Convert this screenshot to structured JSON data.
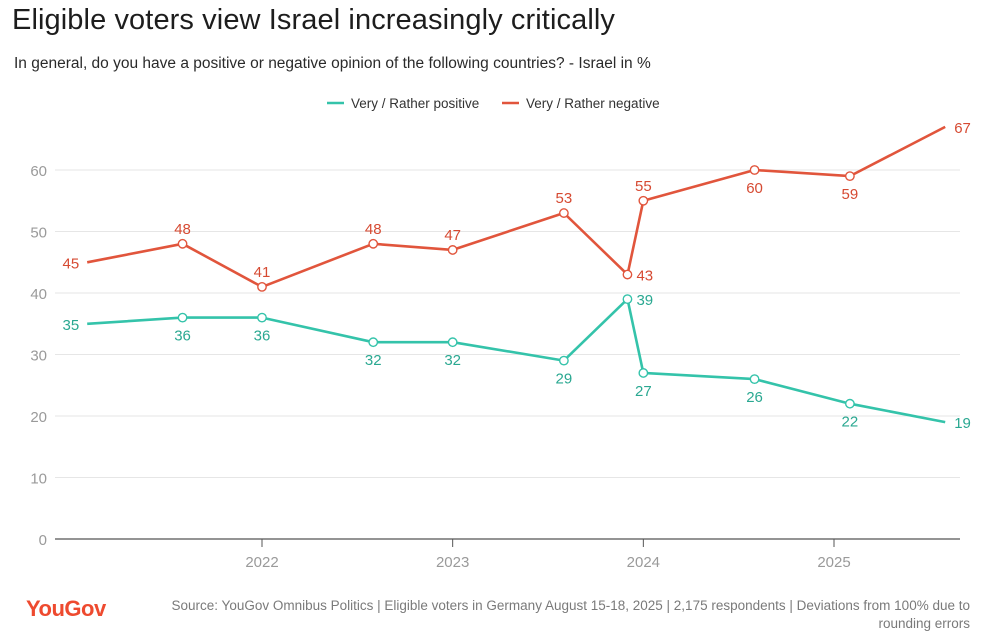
{
  "title": "Eligible voters view Israel increasingly critically",
  "subtitle": "In general, do you have a positive or negative opinion of the following countries? - Israel in %",
  "source": "Source: YouGov Omnibus Politics | Eligible voters in Germany August 15-18, 2025 | 2,175 respondents | Deviations from 100% due to rounding errors",
  "logo": "YouGov",
  "colors": {
    "positive": "#34c3aa",
    "negative": "#e1553c",
    "grid": "#e6e6e6",
    "axis_text": "#9a9a9a"
  },
  "chart_data": {
    "type": "line",
    "title": "Eligible voters view Israel increasingly critically",
    "xlabel": "",
    "ylabel": "",
    "x": [
      "2021-02",
      "2021-08",
      "2022-01",
      "2022-08",
      "2023-01",
      "2023-08",
      "2023-12",
      "2024-01",
      "2024-08",
      "2025-02",
      "2025-08"
    ],
    "x_ticks": [
      "2022",
      "2023",
      "2024",
      "2025"
    ],
    "y_ticks": [
      0,
      10,
      20,
      30,
      40,
      50,
      60
    ],
    "ylim": [
      0,
      67
    ],
    "grid": true,
    "legend_placement": "top-center",
    "series": [
      {
        "name": "Very / Rather positive",
        "color": "#34c3aa",
        "values": [
          35,
          36,
          36,
          32,
          32,
          29,
          39,
          27,
          26,
          22,
          19
        ]
      },
      {
        "name": "Very / Rather negative",
        "color": "#e1553c",
        "values": [
          45,
          48,
          41,
          48,
          47,
          53,
          43,
          55,
          60,
          59,
          67
        ]
      }
    ]
  }
}
